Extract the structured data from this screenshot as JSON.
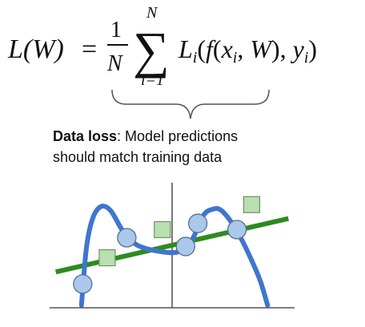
{
  "formula": {
    "lhs": "L(W)",
    "equals": "=",
    "frac_numerator": "1",
    "frac_denominator": "N",
    "sum_upper": "N",
    "sum_lower": "i=1",
    "summand": "Li(f(xi, W), yi)"
  },
  "caption": {
    "bold": "Data loss",
    "line1_rest": ": Model predictions",
    "line2": "should match training data"
  },
  "colors": {
    "curve": "#3f76cf",
    "line": "#2e8b1f",
    "circle_fill": "#a9c8ec",
    "circle_stroke": "#5a6f8a",
    "square_fill": "#b7dfb0",
    "square_stroke": "#6f8f68",
    "axes": "#333333"
  },
  "chart_data": {
    "type": "scatter",
    "x_range": [
      -1,
      1
    ],
    "y_range": [
      -1,
      1
    ],
    "grid": false,
    "fit_line": {
      "slope": 0.45,
      "intercept": 0.0
    },
    "circles": [
      {
        "x": -0.73,
        "y": -0.62
      },
      {
        "x": -0.37,
        "y": 0.12
      },
      {
        "x": 0.11,
        "y": -0.02
      },
      {
        "x": 0.21,
        "y": 0.35
      },
      {
        "x": 0.53,
        "y": 0.25
      }
    ],
    "squares": [
      {
        "x": -0.53,
        "y": -0.2
      },
      {
        "x": -0.08,
        "y": 0.25
      },
      {
        "x": 0.65,
        "y": 0.65
      }
    ],
    "curve": [
      [
        -0.74,
        -0.96
      ],
      [
        -0.7,
        -0.05
      ],
      [
        -0.65,
        0.42
      ],
      [
        -0.58,
        0.62
      ],
      [
        -0.5,
        0.55
      ],
      [
        -0.4,
        0.22
      ],
      [
        -0.3,
        0.02
      ],
      [
        -0.2,
        -0.06
      ],
      [
        -0.1,
        -0.1
      ],
      [
        0.0,
        -0.12
      ],
      [
        0.06,
        -0.1
      ],
      [
        0.12,
        -0.05
      ],
      [
        0.18,
        0.15
      ],
      [
        0.26,
        0.49
      ],
      [
        0.34,
        0.58
      ],
      [
        0.4,
        0.56
      ],
      [
        0.48,
        0.38
      ],
      [
        0.56,
        0.12
      ],
      [
        0.64,
        -0.2
      ],
      [
        0.72,
        -0.57
      ],
      [
        0.78,
        -0.96
      ]
    ]
  }
}
